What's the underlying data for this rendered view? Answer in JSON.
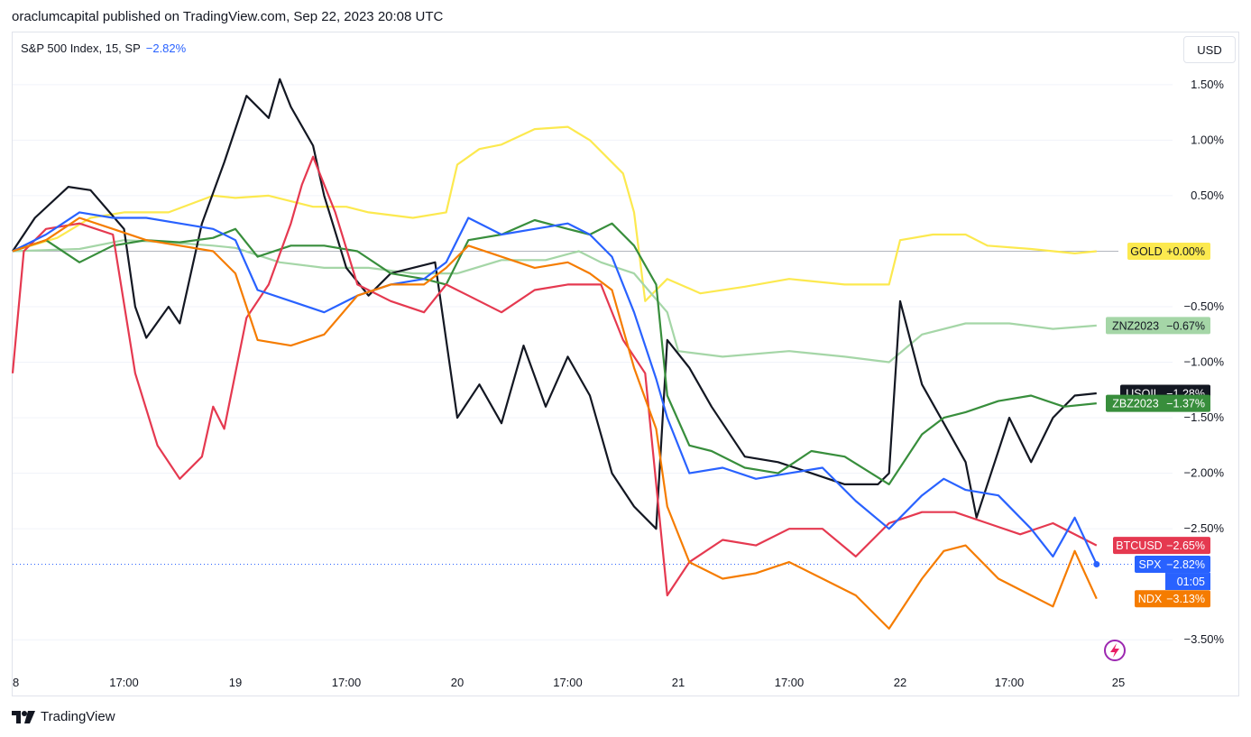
{
  "header": {
    "published": "oraclumcapital published on TradingView.com, Sep 22, 2023 20:08 UTC"
  },
  "legend": {
    "title": "S&P 500 Index, 15, SP",
    "change": "−2.82%"
  },
  "currency_button": "USD",
  "branding": {
    "name": "TradingView"
  },
  "countdown": "01:05",
  "chart_data": {
    "type": "line",
    "x_axis_labels": [
      "8",
      "17:00",
      "19",
      "17:00",
      "20",
      "17:00",
      "21",
      "17:00",
      "22",
      "17:00",
      "25"
    ],
    "y_axis_ticks": [
      "1.50%",
      "1.00%",
      "0.50%",
      "−0.50%",
      "−1.00%",
      "−1.50%",
      "−2.00%",
      "−2.50%",
      "−3.50%"
    ],
    "y_tick_values": [
      1.5,
      1.0,
      0.5,
      -0.5,
      -1.0,
      -1.5,
      -2.0,
      -2.5,
      -3.5
    ],
    "ylim": [
      -3.75,
      1.97
    ],
    "xlim": [
      0,
      4.9
    ],
    "zero_line_color": "#b2b5be",
    "series": [
      {
        "name": "GOLD",
        "label": "+0.00%",
        "color": "#fce94f",
        "text_color": "#131722",
        "points": [
          [
            0,
            0
          ],
          [
            0.2,
            0.12
          ],
          [
            0.35,
            0.3
          ],
          [
            0.5,
            0.35
          ],
          [
            0.7,
            0.35
          ],
          [
            0.9,
            0.5
          ],
          [
            1.0,
            0.48
          ],
          [
            1.15,
            0.5
          ],
          [
            1.35,
            0.4
          ],
          [
            1.5,
            0.4
          ],
          [
            1.6,
            0.35
          ],
          [
            1.8,
            0.3
          ],
          [
            1.95,
            0.35
          ],
          [
            2.0,
            0.78
          ],
          [
            2.1,
            0.92
          ],
          [
            2.2,
            0.96
          ],
          [
            2.35,
            1.1
          ],
          [
            2.5,
            1.12
          ],
          [
            2.6,
            1.0
          ],
          [
            2.75,
            0.7
          ],
          [
            2.8,
            0.35
          ],
          [
            2.85,
            -0.45
          ],
          [
            2.95,
            -0.25
          ],
          [
            3.1,
            -0.38
          ],
          [
            3.3,
            -0.32
          ],
          [
            3.5,
            -0.25
          ],
          [
            3.75,
            -0.3
          ],
          [
            3.95,
            -0.3
          ],
          [
            4.0,
            0.1
          ],
          [
            4.15,
            0.15
          ],
          [
            4.3,
            0.15
          ],
          [
            4.4,
            0.05
          ],
          [
            4.6,
            0.02
          ],
          [
            4.8,
            -0.02
          ],
          [
            4.9,
            0.0
          ]
        ]
      },
      {
        "name": "ZNZ2023",
        "label": "−0.67%",
        "color": "#a5d6a7",
        "text_color": "#131722",
        "points": [
          [
            0,
            0
          ],
          [
            0.3,
            0.02
          ],
          [
            0.5,
            0.1
          ],
          [
            0.7,
            0.08
          ],
          [
            0.9,
            0.05
          ],
          [
            1.0,
            0.03
          ],
          [
            1.2,
            -0.1
          ],
          [
            1.4,
            -0.15
          ],
          [
            1.6,
            -0.15
          ],
          [
            1.8,
            -0.2
          ],
          [
            2.0,
            -0.2
          ],
          [
            2.2,
            -0.08
          ],
          [
            2.4,
            -0.08
          ],
          [
            2.55,
            0.0
          ],
          [
            2.65,
            -0.1
          ],
          [
            2.8,
            -0.2
          ],
          [
            2.95,
            -0.55
          ],
          [
            3.0,
            -0.9
          ],
          [
            3.2,
            -0.95
          ],
          [
            3.5,
            -0.9
          ],
          [
            3.75,
            -0.95
          ],
          [
            3.95,
            -1.0
          ],
          [
            4.1,
            -0.75
          ],
          [
            4.3,
            -0.65
          ],
          [
            4.5,
            -0.65
          ],
          [
            4.7,
            -0.7
          ],
          [
            4.9,
            -0.67
          ]
        ]
      },
      {
        "name": "USOIL",
        "label": "−1.28%",
        "color": "#131722",
        "text_color": "#ffffff",
        "points": [
          [
            0,
            0
          ],
          [
            0.1,
            0.3
          ],
          [
            0.25,
            0.58
          ],
          [
            0.35,
            0.55
          ],
          [
            0.5,
            0.2
          ],
          [
            0.55,
            -0.5
          ],
          [
            0.6,
            -0.78
          ],
          [
            0.7,
            -0.5
          ],
          [
            0.75,
            -0.65
          ],
          [
            0.85,
            0.25
          ],
          [
            0.95,
            0.8
          ],
          [
            1.05,
            1.4
          ],
          [
            1.15,
            1.2
          ],
          [
            1.2,
            1.55
          ],
          [
            1.25,
            1.3
          ],
          [
            1.35,
            0.95
          ],
          [
            1.4,
            0.5
          ],
          [
            1.5,
            -0.15
          ],
          [
            1.6,
            -0.4
          ],
          [
            1.7,
            -0.2
          ],
          [
            1.8,
            -0.15
          ],
          [
            1.9,
            -0.1
          ],
          [
            2.0,
            -1.5
          ],
          [
            2.1,
            -1.2
          ],
          [
            2.2,
            -1.55
          ],
          [
            2.3,
            -0.85
          ],
          [
            2.4,
            -1.4
          ],
          [
            2.5,
            -0.95
          ],
          [
            2.6,
            -1.3
          ],
          [
            2.7,
            -2.0
          ],
          [
            2.8,
            -2.3
          ],
          [
            2.9,
            -2.5
          ],
          [
            2.95,
            -0.8
          ],
          [
            3.05,
            -1.05
          ],
          [
            3.15,
            -1.4
          ],
          [
            3.3,
            -1.85
          ],
          [
            3.45,
            -1.9
          ],
          [
            3.6,
            -2.0
          ],
          [
            3.75,
            -2.1
          ],
          [
            3.9,
            -2.1
          ],
          [
            3.95,
            -2.0
          ],
          [
            4.0,
            -0.45
          ],
          [
            4.1,
            -1.2
          ],
          [
            4.2,
            -1.55
          ],
          [
            4.3,
            -1.9
          ],
          [
            4.35,
            -2.4
          ],
          [
            4.5,
            -1.5
          ],
          [
            4.6,
            -1.9
          ],
          [
            4.7,
            -1.5
          ],
          [
            4.8,
            -1.3
          ],
          [
            4.9,
            -1.28
          ]
        ]
      },
      {
        "name": "ZBZ2023",
        "label": "−1.37%",
        "color": "#388e3c",
        "text_color": "#ffffff",
        "points": [
          [
            0,
            0
          ],
          [
            0.15,
            0.1
          ],
          [
            0.3,
            -0.1
          ],
          [
            0.45,
            0.05
          ],
          [
            0.6,
            0.1
          ],
          [
            0.75,
            0.08
          ],
          [
            0.9,
            0.12
          ],
          [
            1.0,
            0.2
          ],
          [
            1.1,
            -0.05
          ],
          [
            1.25,
            0.05
          ],
          [
            1.4,
            0.05
          ],
          [
            1.55,
            0.0
          ],
          [
            1.7,
            -0.2
          ],
          [
            1.85,
            -0.25
          ],
          [
            1.95,
            -0.3
          ],
          [
            2.05,
            0.1
          ],
          [
            2.2,
            0.15
          ],
          [
            2.35,
            0.28
          ],
          [
            2.5,
            0.2
          ],
          [
            2.6,
            0.15
          ],
          [
            2.7,
            0.25
          ],
          [
            2.8,
            0.05
          ],
          [
            2.9,
            -0.3
          ],
          [
            2.95,
            -1.3
          ],
          [
            3.05,
            -1.75
          ],
          [
            3.15,
            -1.8
          ],
          [
            3.3,
            -1.95
          ],
          [
            3.45,
            -2.0
          ],
          [
            3.6,
            -1.8
          ],
          [
            3.75,
            -1.85
          ],
          [
            3.95,
            -2.1
          ],
          [
            4.1,
            -1.65
          ],
          [
            4.2,
            -1.5
          ],
          [
            4.3,
            -1.45
          ],
          [
            4.45,
            -1.35
          ],
          [
            4.6,
            -1.3
          ],
          [
            4.75,
            -1.4
          ],
          [
            4.9,
            -1.37
          ]
        ]
      },
      {
        "name": "BTCUSD",
        "label": "−2.65%",
        "color": "#e53950",
        "text_color": "#ffffff",
        "points": [
          [
            0,
            -1.1
          ],
          [
            0.05,
            0.0
          ],
          [
            0.15,
            0.2
          ],
          [
            0.3,
            0.25
          ],
          [
            0.45,
            0.15
          ],
          [
            0.55,
            -1.1
          ],
          [
            0.65,
            -1.75
          ],
          [
            0.75,
            -2.05
          ],
          [
            0.85,
            -1.85
          ],
          [
            0.9,
            -1.4
          ],
          [
            0.95,
            -1.6
          ],
          [
            1.05,
            -0.6
          ],
          [
            1.15,
            -0.3
          ],
          [
            1.25,
            0.25
          ],
          [
            1.3,
            0.6
          ],
          [
            1.35,
            0.85
          ],
          [
            1.45,
            0.35
          ],
          [
            1.55,
            -0.3
          ],
          [
            1.7,
            -0.45
          ],
          [
            1.85,
            -0.55
          ],
          [
            1.95,
            -0.3
          ],
          [
            2.05,
            -0.4
          ],
          [
            2.2,
            -0.55
          ],
          [
            2.35,
            -0.35
          ],
          [
            2.5,
            -0.3
          ],
          [
            2.65,
            -0.3
          ],
          [
            2.75,
            -0.8
          ],
          [
            2.85,
            -1.1
          ],
          [
            2.95,
            -3.1
          ],
          [
            3.05,
            -2.8
          ],
          [
            3.2,
            -2.6
          ],
          [
            3.35,
            -2.65
          ],
          [
            3.5,
            -2.5
          ],
          [
            3.65,
            -2.5
          ],
          [
            3.8,
            -2.75
          ],
          [
            3.95,
            -2.45
          ],
          [
            4.1,
            -2.35
          ],
          [
            4.25,
            -2.35
          ],
          [
            4.4,
            -2.45
          ],
          [
            4.55,
            -2.55
          ],
          [
            4.7,
            -2.45
          ],
          [
            4.85,
            -2.6
          ],
          [
            4.9,
            -2.65
          ]
        ]
      },
      {
        "name": "SPX",
        "label": "−2.82%",
        "color": "#2962ff",
        "text_color": "#ffffff",
        "points": [
          [
            0,
            0
          ],
          [
            0.15,
            0.15
          ],
          [
            0.3,
            0.35
          ],
          [
            0.45,
            0.3
          ],
          [
            0.6,
            0.3
          ],
          [
            0.75,
            0.25
          ],
          [
            0.9,
            0.2
          ],
          [
            1.0,
            0.1
          ],
          [
            1.1,
            -0.35
          ],
          [
            1.25,
            -0.45
          ],
          [
            1.4,
            -0.55
          ],
          [
            1.55,
            -0.4
          ],
          [
            1.7,
            -0.3
          ],
          [
            1.85,
            -0.25
          ],
          [
            1.95,
            -0.1
          ],
          [
            2.05,
            0.3
          ],
          [
            2.2,
            0.15
          ],
          [
            2.35,
            0.2
          ],
          [
            2.5,
            0.25
          ],
          [
            2.6,
            0.15
          ],
          [
            2.7,
            -0.05
          ],
          [
            2.8,
            -0.55
          ],
          [
            2.9,
            -1.15
          ],
          [
            2.95,
            -1.5
          ],
          [
            3.05,
            -2.0
          ],
          [
            3.2,
            -1.95
          ],
          [
            3.35,
            -2.05
          ],
          [
            3.5,
            -2.0
          ],
          [
            3.65,
            -1.95
          ],
          [
            3.8,
            -2.25
          ],
          [
            3.95,
            -2.5
          ],
          [
            4.1,
            -2.2
          ],
          [
            4.2,
            -2.05
          ],
          [
            4.3,
            -2.15
          ],
          [
            4.45,
            -2.2
          ],
          [
            4.6,
            -2.5
          ],
          [
            4.7,
            -2.75
          ],
          [
            4.8,
            -2.4
          ],
          [
            4.9,
            -2.82
          ]
        ]
      },
      {
        "name": "NDX",
        "label": "−3.13%",
        "color": "#f57c00",
        "text_color": "#ffffff",
        "points": [
          [
            0,
            0
          ],
          [
            0.15,
            0.1
          ],
          [
            0.3,
            0.3
          ],
          [
            0.45,
            0.2
          ],
          [
            0.6,
            0.1
          ],
          [
            0.75,
            0.05
          ],
          [
            0.9,
            0.0
          ],
          [
            1.0,
            -0.2
          ],
          [
            1.1,
            -0.8
          ],
          [
            1.25,
            -0.85
          ],
          [
            1.4,
            -0.75
          ],
          [
            1.55,
            -0.4
          ],
          [
            1.7,
            -0.3
          ],
          [
            1.85,
            -0.3
          ],
          [
            1.95,
            -0.15
          ],
          [
            2.05,
            0.05
          ],
          [
            2.2,
            -0.05
          ],
          [
            2.35,
            -0.15
          ],
          [
            2.5,
            -0.1
          ],
          [
            2.6,
            -0.2
          ],
          [
            2.7,
            -0.35
          ],
          [
            2.8,
            -1.05
          ],
          [
            2.9,
            -1.6
          ],
          [
            2.95,
            -2.3
          ],
          [
            3.05,
            -2.8
          ],
          [
            3.2,
            -2.95
          ],
          [
            3.35,
            -2.9
          ],
          [
            3.5,
            -2.8
          ],
          [
            3.65,
            -2.95
          ],
          [
            3.8,
            -3.1
          ],
          [
            3.95,
            -3.4
          ],
          [
            4.1,
            -2.95
          ],
          [
            4.2,
            -2.7
          ],
          [
            4.3,
            -2.65
          ],
          [
            4.45,
            -2.95
          ],
          [
            4.6,
            -3.1
          ],
          [
            4.7,
            -3.2
          ],
          [
            4.8,
            -2.7
          ],
          [
            4.9,
            -3.13
          ]
        ]
      }
    ]
  }
}
